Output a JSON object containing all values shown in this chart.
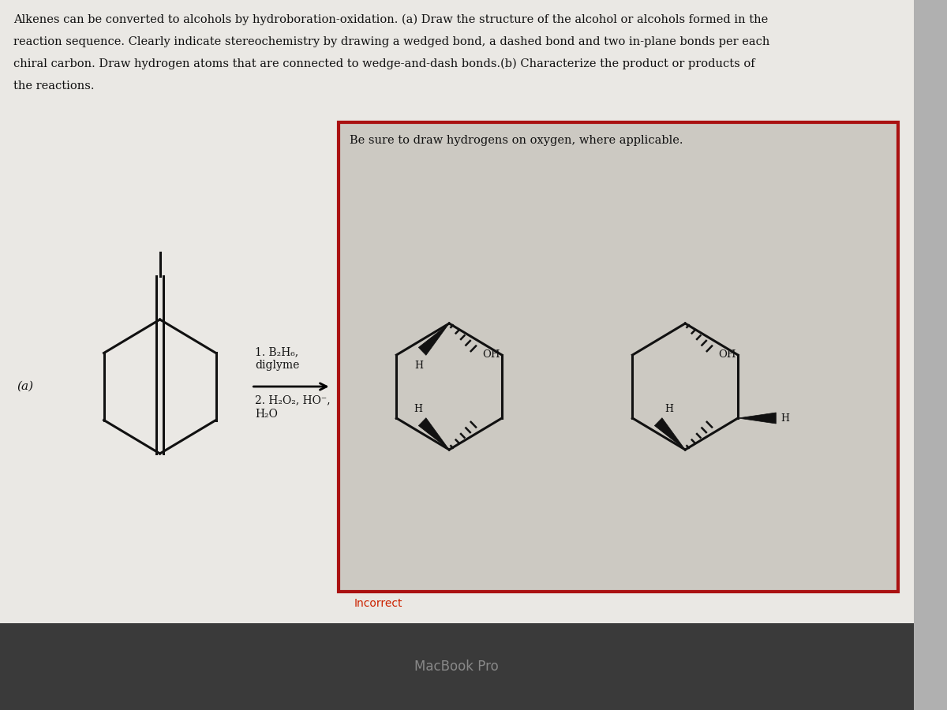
{
  "title_text_lines": [
    "Alkenes can be converted to alcohols by hydroboration-oxidation. (a) Draw the structure of the alcohol or alcohols formed in the",
    "reaction sequence. Clearly indicate stereochemistry by drawing a wedged bond, a dashed bond and two in-plane bonds per each",
    "chiral carbon. Draw hydrogen atoms that are connected to wedge-and-dash bonds.(b) Characterize the product or products of",
    "the reactions."
  ],
  "instruction_text": "Be sure to draw hydrogens on oxygen, where applicable.",
  "label_a": "(a)",
  "reagent_line1": "1. B₂H₆,",
  "reagent_line2": "diglyme",
  "reagent_line3": "2. H₂O₂, HO⁻,",
  "reagent_line4": "H₂O",
  "incorrect_text": "Incorrect",
  "macbook_text": "MacBook Pro",
  "bg_outer": "#b0b0b0",
  "page_color": "#e8e6e2",
  "box_bg_outer": "#d4d0c8",
  "box_bg_inner": "#c8c4bc",
  "box_border": "#aa1111",
  "text_color": "#111111",
  "incorrect_color": "#cc2200",
  "macbook_bar": "#3a3a3a",
  "macbook_color": "#888888",
  "ring_color": "#111111"
}
